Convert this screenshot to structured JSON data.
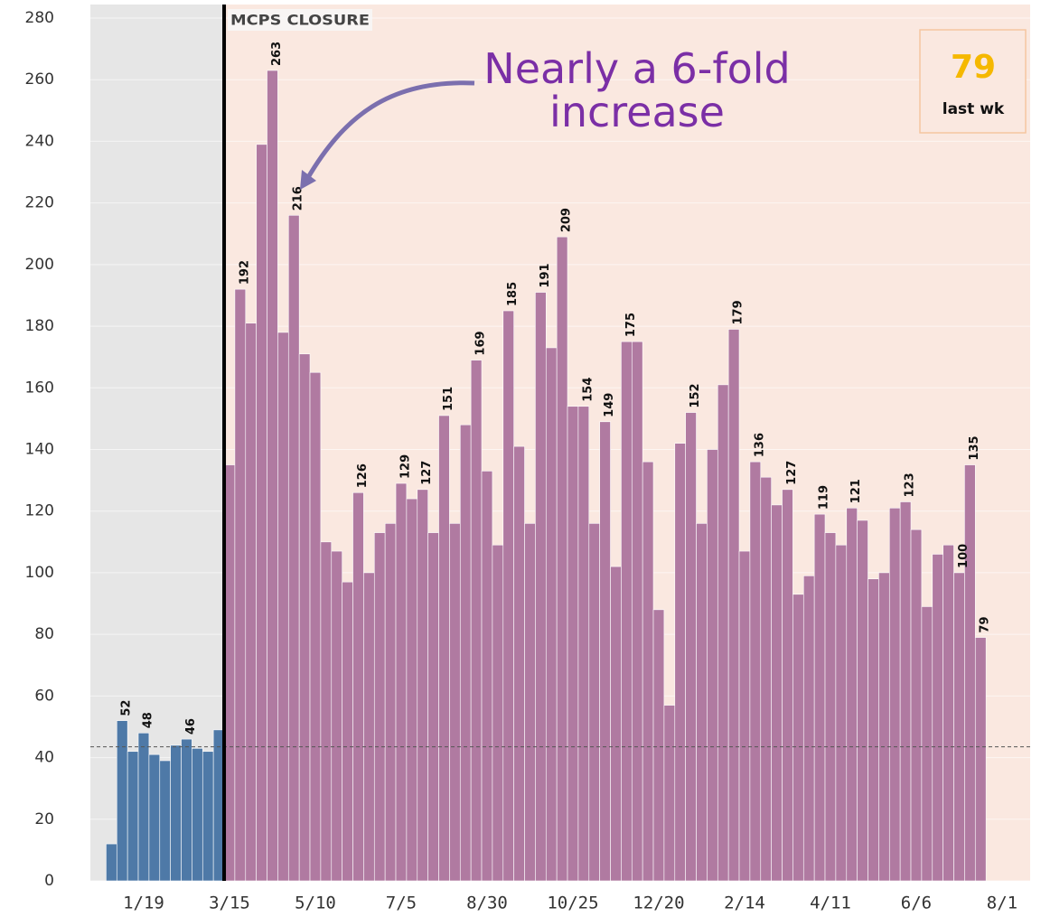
{
  "chart_data": {
    "type": "bar",
    "categories": [
      null,
      null,
      null,
      "1/19",
      null,
      null,
      null,
      null,
      null,
      null,
      null,
      "3/15",
      null,
      null,
      null,
      null,
      null,
      null,
      null,
      "5/10",
      null,
      null,
      null,
      null,
      null,
      null,
      null,
      "7/5",
      null,
      null,
      null,
      null,
      null,
      null,
      null,
      "8/30",
      null,
      null,
      null,
      null,
      null,
      null,
      null,
      "10/25",
      null,
      null,
      null,
      null,
      null,
      null,
      null,
      "12/20",
      null,
      null,
      null,
      null,
      null,
      null,
      null,
      "2/14",
      null,
      null,
      null,
      null,
      null,
      null,
      null,
      "4/11",
      null,
      null,
      null,
      null,
      null,
      null,
      null,
      "6/6",
      null,
      null,
      null,
      null,
      null,
      null,
      null,
      "8/1"
    ],
    "series": [
      {
        "color": "#4e79a7",
        "values": [
          12,
          52,
          42,
          48,
          41,
          39,
          44,
          46,
          43,
          42,
          49,
          null,
          null,
          null,
          null,
          null,
          null,
          null,
          null,
          null,
          null,
          null,
          null,
          null,
          null,
          null,
          null,
          null,
          null,
          null,
          null,
          null,
          null,
          null,
          null,
          null,
          null,
          null,
          null,
          null,
          null,
          null,
          null,
          null,
          null,
          null,
          null,
          null,
          null,
          null,
          null,
          null,
          null,
          null,
          null,
          null,
          null,
          null,
          null,
          null,
          null,
          null,
          null,
          null,
          null,
          null,
          null,
          null,
          null,
          null,
          null,
          null,
          null,
          null,
          null,
          null,
          null,
          null,
          null,
          null,
          null,
          null,
          null,
          null
        ],
        "value_labels": [
          null,
          52,
          null,
          48,
          null,
          null,
          null,
          46,
          null,
          null,
          null,
          null,
          null,
          null,
          null,
          null,
          null,
          null,
          null,
          null,
          null,
          null,
          null,
          null,
          null,
          null,
          null,
          null,
          null,
          null,
          null,
          null,
          null,
          null,
          null,
          null,
          null,
          null,
          null,
          null,
          null,
          null,
          null,
          null,
          null,
          null,
          null,
          null,
          null,
          null,
          null,
          null,
          null,
          null,
          null,
          null,
          null,
          null,
          null,
          null,
          null,
          null,
          null,
          null,
          null,
          null,
          null,
          null,
          null,
          null,
          null,
          null,
          null,
          null,
          null,
          null,
          null,
          null,
          null,
          null,
          null,
          null,
          null,
          null
        ]
      },
      {
        "color": "#b07aa1",
        "values": [
          null,
          null,
          null,
          null,
          null,
          null,
          null,
          null,
          null,
          null,
          null,
          135,
          192,
          181,
          239,
          263,
          178,
          216,
          171,
          165,
          110,
          107,
          97,
          126,
          100,
          113,
          116,
          129,
          124,
          127,
          113,
          151,
          116,
          148,
          169,
          133,
          109,
          185,
          141,
          116,
          191,
          173,
          209,
          154,
          154,
          116,
          149,
          102,
          175,
          175,
          136,
          88,
          57,
          142,
          152,
          116,
          140,
          161,
          179,
          107,
          136,
          131,
          122,
          127,
          93,
          99,
          119,
          113,
          109,
          121,
          117,
          98,
          100,
          121,
          123,
          114,
          89,
          106,
          109,
          100,
          135,
          79,
          null,
          null
        ],
        "value_labels": [
          null,
          null,
          null,
          null,
          null,
          null,
          null,
          null,
          null,
          null,
          null,
          null,
          192,
          null,
          null,
          263,
          null,
          216,
          null,
          null,
          null,
          null,
          null,
          126,
          null,
          null,
          null,
          129,
          null,
          127,
          null,
          151,
          null,
          null,
          169,
          null,
          null,
          185,
          null,
          null,
          191,
          null,
          209,
          null,
          154,
          null,
          149,
          null,
          175,
          null,
          null,
          null,
          null,
          null,
          152,
          null,
          null,
          null,
          179,
          null,
          136,
          null,
          null,
          127,
          null,
          null,
          119,
          null,
          null,
          121,
          null,
          null,
          null,
          null,
          123,
          null,
          null,
          null,
          null,
          100,
          135,
          79,
          null,
          null
        ]
      }
    ],
    "ylim": [
      0,
      280
    ],
    "yticks": [
      0,
      20,
      40,
      60,
      80,
      100,
      120,
      140,
      160,
      180,
      200,
      220,
      240,
      260,
      280
    ],
    "grid": true,
    "reference_line": 43.5,
    "annotations": [
      {
        "text": "MCPS CLOSURE",
        "x": "3/15"
      }
    ],
    "callout": "Nearly a 6-fold increase",
    "kpi": {
      "value": 79,
      "label": "last wk"
    }
  }
}
